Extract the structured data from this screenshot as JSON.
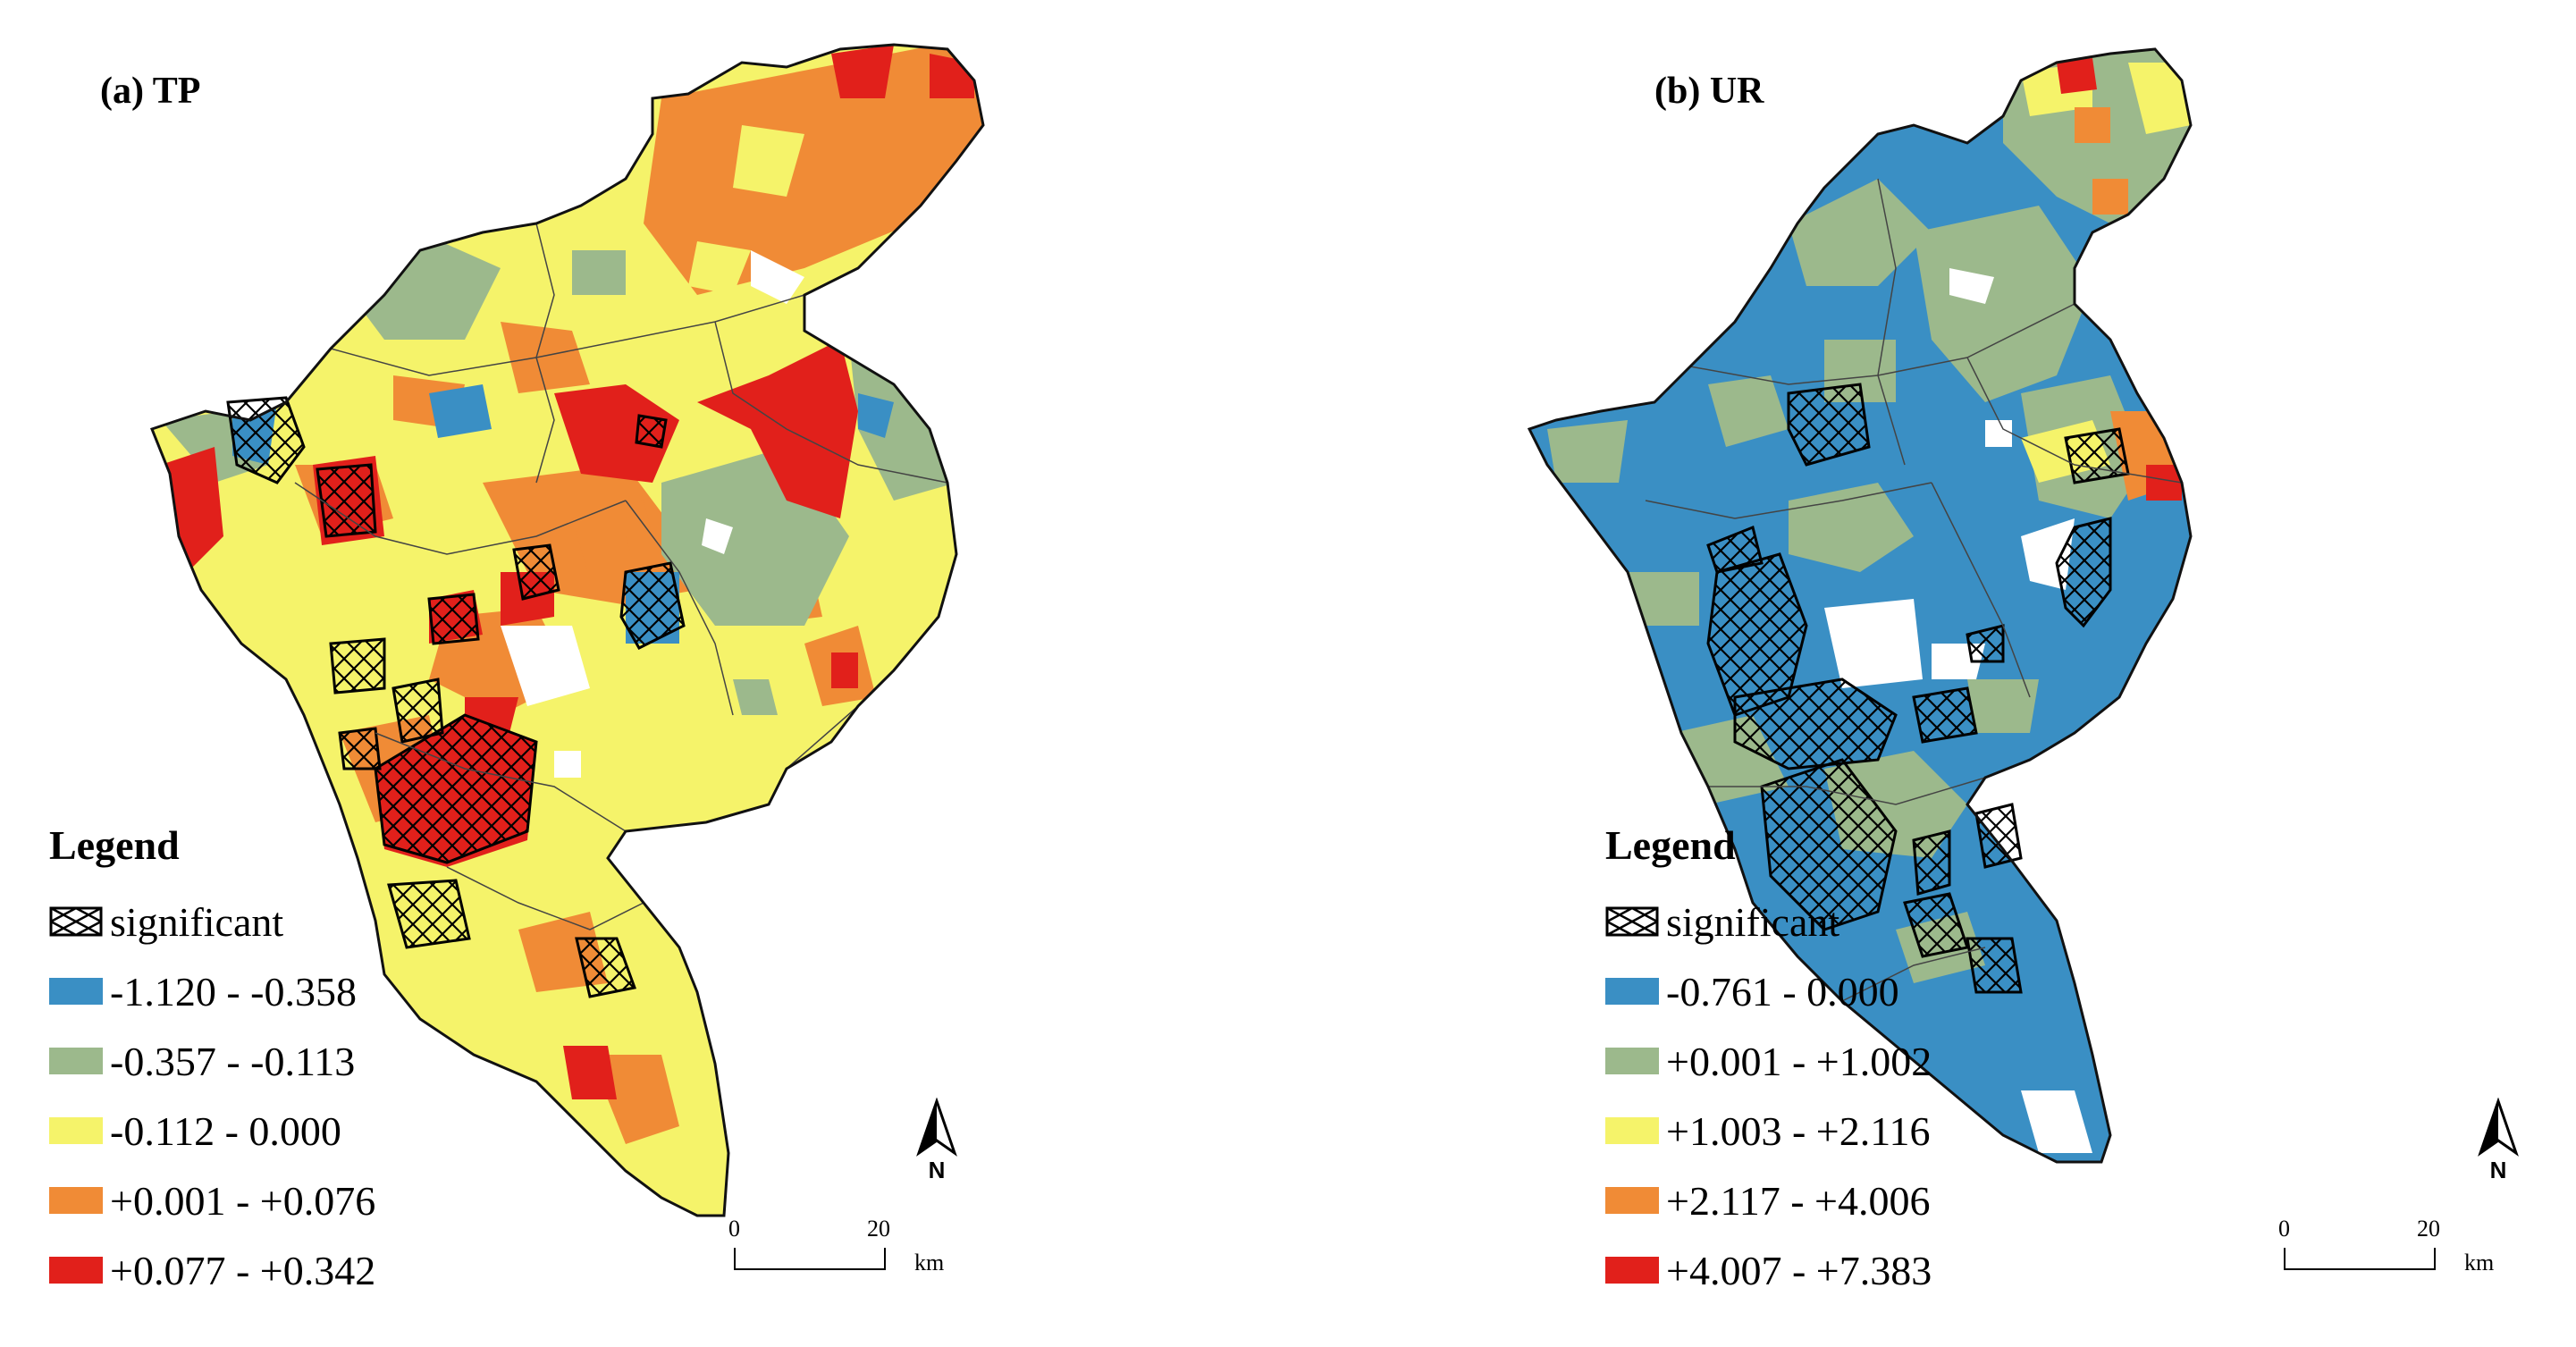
{
  "figure": {
    "panels": [
      {
        "id": "a",
        "title": "(a) TP",
        "legend_title": "Legend",
        "significance_label": "significant",
        "classes": [
          {
            "label": "-1.120 - -0.358",
            "color": "#3a8fc4"
          },
          {
            "label": "-0.357 - -0.113",
            "color": "#9cb98c"
          },
          {
            "label": "-0.112 - 0.000",
            "color": "#f5f36a"
          },
          {
            "label": "+0.001 - +0.076",
            "color": "#f08b36"
          },
          {
            "label": "+0.077 - +0.342",
            "color": "#e1201b"
          }
        ],
        "north_label": "N",
        "scale": {
          "start": "0",
          "end": "20",
          "unit": "km"
        }
      },
      {
        "id": "b",
        "title": "(b) UR",
        "legend_title": "Legend",
        "significance_label": "significant",
        "classes": [
          {
            "label": "-0.761 - 0.000",
            "color": "#3a8fc4"
          },
          {
            "label": "+0.001 - +1.002",
            "color": "#9cb98c"
          },
          {
            "label": "+1.003 - +2.116",
            "color": "#f5f36a"
          },
          {
            "label": "+2.117 - +4.006",
            "color": "#f08b36"
          },
          {
            "label": "+4.007 - +7.383",
            "color": "#e1201b"
          }
        ],
        "north_label": "N",
        "scale": {
          "start": "0",
          "end": "20",
          "unit": "km"
        }
      }
    ]
  }
}
